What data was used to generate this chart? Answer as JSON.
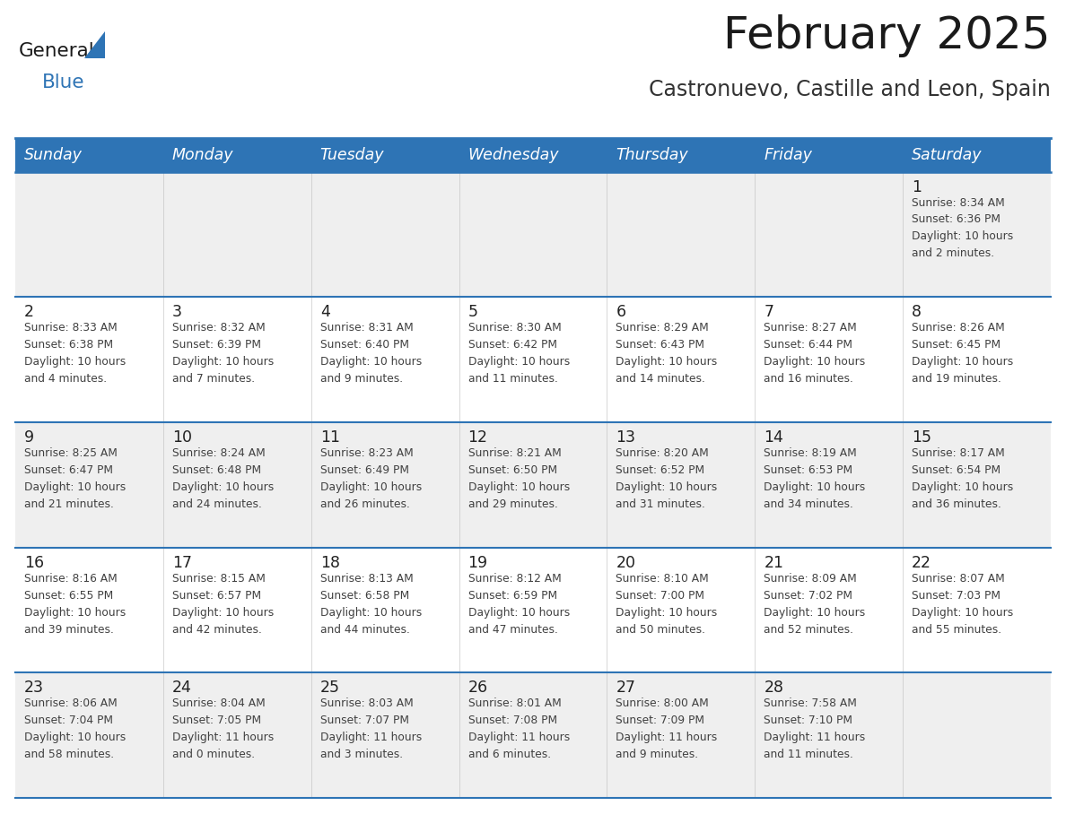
{
  "title": "February 2025",
  "subtitle": "Castronuevo, Castille and Leon, Spain",
  "days_of_week": [
    "Sunday",
    "Monday",
    "Tuesday",
    "Wednesday",
    "Thursday",
    "Friday",
    "Saturday"
  ],
  "header_bg": "#2E74B5",
  "header_text": "#FFFFFF",
  "row_bg_odd": "#EFEFEF",
  "row_bg_even": "#FFFFFF",
  "border_color": "#2E74B5",
  "cell_text_color": "#404040",
  "day_num_color": "#222222",
  "title_color": "#1A1A1A",
  "subtitle_color": "#333333",
  "logo_text_color": "#1A1A1A",
  "logo_blue_color": "#2E74B5",
  "calendar": [
    [
      {
        "day": null,
        "info": null
      },
      {
        "day": null,
        "info": null
      },
      {
        "day": null,
        "info": null
      },
      {
        "day": null,
        "info": null
      },
      {
        "day": null,
        "info": null
      },
      {
        "day": null,
        "info": null
      },
      {
        "day": 1,
        "info": "Sunrise: 8:34 AM\nSunset: 6:36 PM\nDaylight: 10 hours\nand 2 minutes."
      }
    ],
    [
      {
        "day": 2,
        "info": "Sunrise: 8:33 AM\nSunset: 6:38 PM\nDaylight: 10 hours\nand 4 minutes."
      },
      {
        "day": 3,
        "info": "Sunrise: 8:32 AM\nSunset: 6:39 PM\nDaylight: 10 hours\nand 7 minutes."
      },
      {
        "day": 4,
        "info": "Sunrise: 8:31 AM\nSunset: 6:40 PM\nDaylight: 10 hours\nand 9 minutes."
      },
      {
        "day": 5,
        "info": "Sunrise: 8:30 AM\nSunset: 6:42 PM\nDaylight: 10 hours\nand 11 minutes."
      },
      {
        "day": 6,
        "info": "Sunrise: 8:29 AM\nSunset: 6:43 PM\nDaylight: 10 hours\nand 14 minutes."
      },
      {
        "day": 7,
        "info": "Sunrise: 8:27 AM\nSunset: 6:44 PM\nDaylight: 10 hours\nand 16 minutes."
      },
      {
        "day": 8,
        "info": "Sunrise: 8:26 AM\nSunset: 6:45 PM\nDaylight: 10 hours\nand 19 minutes."
      }
    ],
    [
      {
        "day": 9,
        "info": "Sunrise: 8:25 AM\nSunset: 6:47 PM\nDaylight: 10 hours\nand 21 minutes."
      },
      {
        "day": 10,
        "info": "Sunrise: 8:24 AM\nSunset: 6:48 PM\nDaylight: 10 hours\nand 24 minutes."
      },
      {
        "day": 11,
        "info": "Sunrise: 8:23 AM\nSunset: 6:49 PM\nDaylight: 10 hours\nand 26 minutes."
      },
      {
        "day": 12,
        "info": "Sunrise: 8:21 AM\nSunset: 6:50 PM\nDaylight: 10 hours\nand 29 minutes."
      },
      {
        "day": 13,
        "info": "Sunrise: 8:20 AM\nSunset: 6:52 PM\nDaylight: 10 hours\nand 31 minutes."
      },
      {
        "day": 14,
        "info": "Sunrise: 8:19 AM\nSunset: 6:53 PM\nDaylight: 10 hours\nand 34 minutes."
      },
      {
        "day": 15,
        "info": "Sunrise: 8:17 AM\nSunset: 6:54 PM\nDaylight: 10 hours\nand 36 minutes."
      }
    ],
    [
      {
        "day": 16,
        "info": "Sunrise: 8:16 AM\nSunset: 6:55 PM\nDaylight: 10 hours\nand 39 minutes."
      },
      {
        "day": 17,
        "info": "Sunrise: 8:15 AM\nSunset: 6:57 PM\nDaylight: 10 hours\nand 42 minutes."
      },
      {
        "day": 18,
        "info": "Sunrise: 8:13 AM\nSunset: 6:58 PM\nDaylight: 10 hours\nand 44 minutes."
      },
      {
        "day": 19,
        "info": "Sunrise: 8:12 AM\nSunset: 6:59 PM\nDaylight: 10 hours\nand 47 minutes."
      },
      {
        "day": 20,
        "info": "Sunrise: 8:10 AM\nSunset: 7:00 PM\nDaylight: 10 hours\nand 50 minutes."
      },
      {
        "day": 21,
        "info": "Sunrise: 8:09 AM\nSunset: 7:02 PM\nDaylight: 10 hours\nand 52 minutes."
      },
      {
        "day": 22,
        "info": "Sunrise: 8:07 AM\nSunset: 7:03 PM\nDaylight: 10 hours\nand 55 minutes."
      }
    ],
    [
      {
        "day": 23,
        "info": "Sunrise: 8:06 AM\nSunset: 7:04 PM\nDaylight: 10 hours\nand 58 minutes."
      },
      {
        "day": 24,
        "info": "Sunrise: 8:04 AM\nSunset: 7:05 PM\nDaylight: 11 hours\nand 0 minutes."
      },
      {
        "day": 25,
        "info": "Sunrise: 8:03 AM\nSunset: 7:07 PM\nDaylight: 11 hours\nand 3 minutes."
      },
      {
        "day": 26,
        "info": "Sunrise: 8:01 AM\nSunset: 7:08 PM\nDaylight: 11 hours\nand 6 minutes."
      },
      {
        "day": 27,
        "info": "Sunrise: 8:00 AM\nSunset: 7:09 PM\nDaylight: 11 hours\nand 9 minutes."
      },
      {
        "day": 28,
        "info": "Sunrise: 7:58 AM\nSunset: 7:10 PM\nDaylight: 11 hours\nand 11 minutes."
      },
      {
        "day": null,
        "info": null
      }
    ]
  ]
}
